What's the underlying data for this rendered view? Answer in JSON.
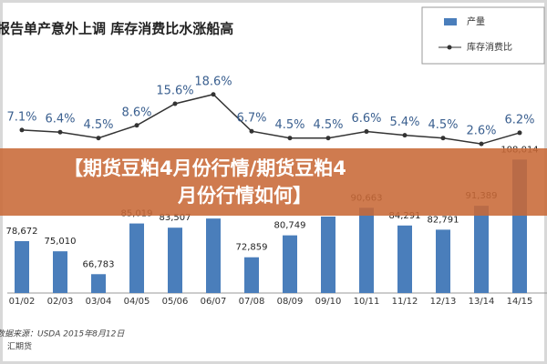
{
  "chart_data": {
    "type": "bar_line",
    "title": "报告单产意外上调 库存消费比水涨船高",
    "categories": [
      "01/02",
      "02/03",
      "03/04",
      "04/05",
      "05/06",
      "06/07",
      "07/08",
      "08/09",
      "09/10",
      "10/11",
      "11/12",
      "12/13",
      "13/14",
      "14/15"
    ],
    "series": [
      {
        "name": "产量",
        "color": "#4a7ebb",
        "type": "bar",
        "values": [
          78672,
          75010,
          66783,
          85019,
          83507,
          86800,
          72859,
          80749,
          87500,
          90663,
          84291,
          82791,
          91389,
          108014
        ],
        "value_labels": [
          "78,672",
          "75,010",
          "66,783",
          "85,019",
          "83,507",
          null,
          "72,859",
          "80,749",
          null,
          "90,663",
          "84,291",
          "82,791",
          "91,389",
          "108,014"
        ]
      },
      {
        "name": "库存消费比",
        "color": "#333333",
        "type": "line",
        "axis": "y2",
        "values": [
          7.1,
          6.4,
          4.5,
          8.6,
          15.6,
          18.6,
          6.7,
          4.5,
          4.5,
          6.6,
          5.4,
          4.5,
          2.6,
          6.2
        ],
        "value_labels": [
          "7.1%",
          "6.4%",
          "4.5%",
          "8.6%",
          "15.6%",
          "18.6%",
          "6.7%",
          "4.5%",
          "4.5%",
          "6.6%",
          "5.4%",
          "4.5%",
          "2.6%",
          "6.2%"
        ]
      }
    ],
    "ylim": [
      60000,
      115000
    ],
    "y2lim": [
      0,
      20
    ],
    "source": "数据来源：USDA 2015年8月12日",
    "source2": "汇期货",
    "banner": [
      "【期货豆粕4月份行情/期货豆粕4",
      "月份行情如何】"
    ]
  }
}
